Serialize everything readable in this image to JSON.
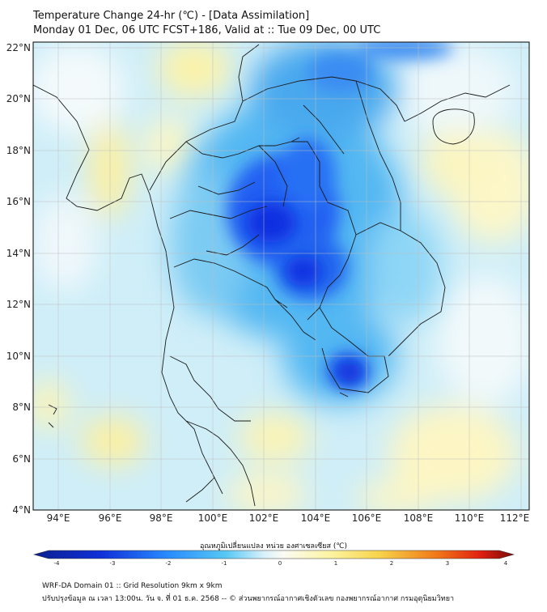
{
  "header": {
    "title_line1": "Temperature Change 24-hr (℃) - [Data Assimilation]",
    "title_line2": "Monday 01 Dec, 06 UTC FCST+186, Valid at :: Tue 09 Dec, 00 UTC"
  },
  "map": {
    "lat_labels": [
      "22°N",
      "20°N",
      "18°N",
      "16°N",
      "14°N",
      "12°N",
      "10°N",
      "8°N",
      "6°N",
      "4°N"
    ],
    "lon_labels": [
      "94°E",
      "96°E",
      "98°E",
      "100°E",
      "102°E",
      "104°E",
      "106°E",
      "108°E",
      "110°E",
      "112°E"
    ],
    "lat_range": [
      4,
      22
    ],
    "lon_range": [
      93,
      112.3
    ],
    "colors": {
      "strong_cooling": "#0a2fe0",
      "moderate_cooling": "#2a8cff",
      "slight_cooling": "#8fd9f8",
      "near_zero": "#eaf6fb",
      "slight_warming": "#fdf6a8",
      "border_line": "#222222"
    }
  },
  "colorbar": {
    "title": "อุณหภูมิเปลี่ยนแปลง หน่วย องศาเซลเซียส (℃)",
    "ticks": [
      "-4",
      "-3",
      "-2",
      "-1",
      "0",
      "1",
      "2",
      "3",
      "4"
    ],
    "range": [
      -4,
      4
    ]
  },
  "footer": {
    "line1": "WRF-DA Domain 01 :: Grid Resolution 9km x 9km",
    "line2": "ปรับปรุงข้อมูล ณ เวลา 13:00น. วัน จ. ที่ 01 ธ.ค. 2568 -- © ส่วนพยากรณ์อากาศเชิงตัวเลข กองพยากรณ์อากาศ กรมอุตุนิยมวิทยา"
  }
}
